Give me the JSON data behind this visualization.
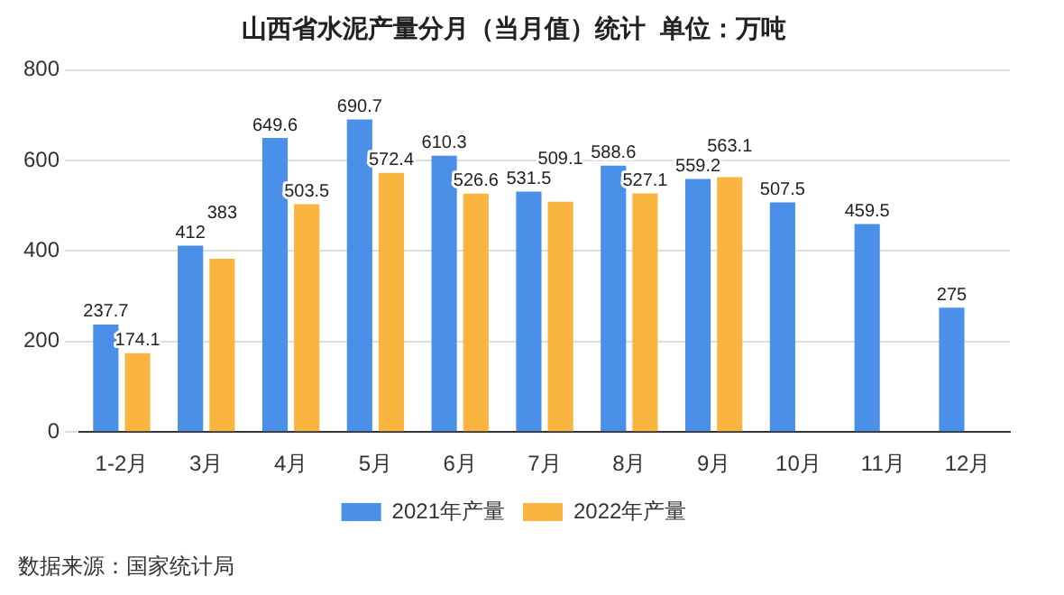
{
  "chart_data": {
    "type": "bar",
    "title": "山西省水泥产量分月（当月值）统计  单位：万吨",
    "categories": [
      "1-2月",
      "3月",
      "4月",
      "5月",
      "6月",
      "7月",
      "8月",
      "9月",
      "10月",
      "11月",
      "12月"
    ],
    "series": [
      {
        "name": "2021年产量",
        "color": "#4a8fe8",
        "values": [
          237.7,
          412,
          649.6,
          690.7,
          610.3,
          531.5,
          588.6,
          559.2,
          507.5,
          459.5,
          275
        ]
      },
      {
        "name": "2022年产量",
        "color": "#f9b53f",
        "values": [
          174.1,
          383,
          503.5,
          572.4,
          526.6,
          509.1,
          527.1,
          563.1,
          null,
          null,
          null
        ]
      }
    ],
    "ylim": [
      0,
      800
    ],
    "yticks": [
      0,
      200,
      400,
      600,
      800
    ],
    "grid": "y",
    "legend": "bottom",
    "data_labels": true,
    "annotations": [
      "数据来源：国家统计局"
    ]
  }
}
